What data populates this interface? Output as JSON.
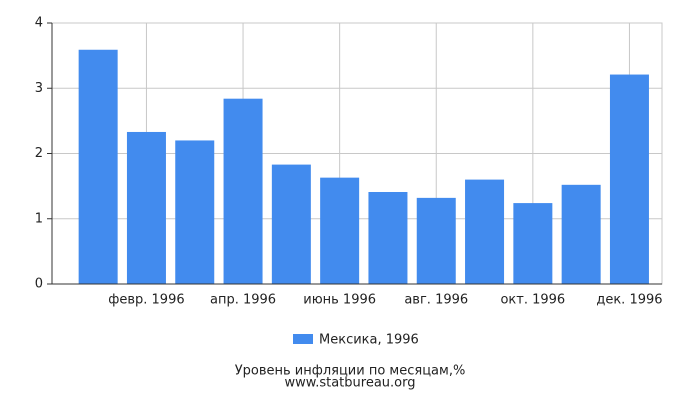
{
  "chart_data": {
    "type": "bar",
    "title": "Уровень инфляции по месяцам,%",
    "subtitle": "www.statbureau.org",
    "categories": [
      null,
      "февр. 1996",
      null,
      "апр. 1996",
      null,
      "июнь 1996",
      null,
      "авг. 1996",
      null,
      "окт. 1996",
      null,
      "дек. 1996"
    ],
    "series": [
      {
        "name": "Мексика, 1996",
        "color": "#428bee",
        "values": [
          3.59,
          2.33,
          2.2,
          2.84,
          1.83,
          1.63,
          1.41,
          1.32,
          1.6,
          1.24,
          1.52,
          3.21
        ]
      }
    ],
    "ylim": [
      0,
      4
    ],
    "yticks": [
      0,
      1,
      2,
      3,
      4
    ],
    "grid": true
  }
}
